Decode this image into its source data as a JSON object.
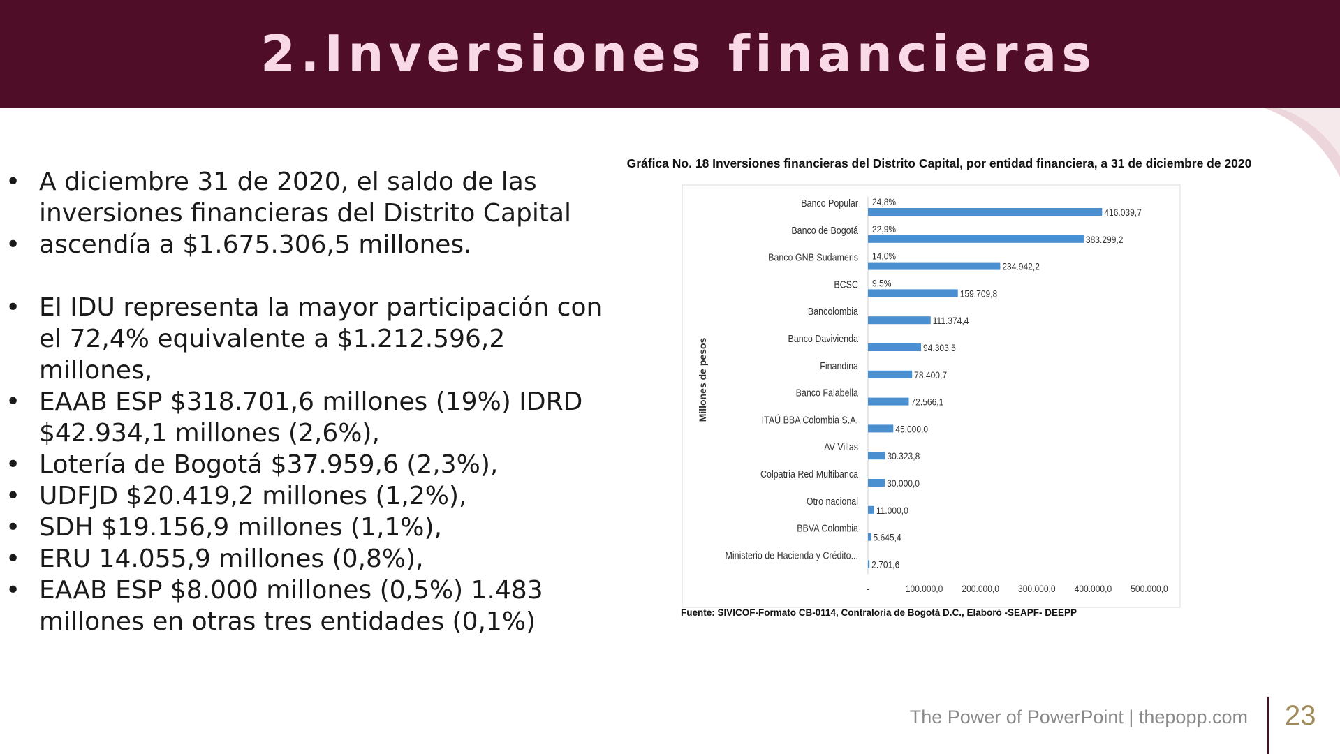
{
  "slide": {
    "title": "2.Inversiones financieras",
    "page_number": "23",
    "footer": "The Power of PowerPoint | thepopp.com"
  },
  "bullets": [
    {
      "text": "A diciembre 31 de 2020, el saldo de las inversiones financieras del Distrito Capital",
      "bullet": true
    },
    {
      "text": "ascendía a $1.675.306,5 millones.",
      "bullet": true
    },
    {
      "text": "",
      "bullet": false
    },
    {
      "text": "El IDU representa la mayor participación con el 72,4% equivalente a $1.212.596,2 millones,",
      "bullet": true
    },
    {
      "text": "EAAB ESP $318.701,6 millones (19%) IDRD $42.934,1 millones (2,6%),",
      "bullet": true
    },
    {
      "text": "Lotería de Bogotá $37.959,6 (2,3%),",
      "bullet": true
    },
    {
      "text": "UDFJD $20.419,2 millones (1,2%),",
      "bullet": true
    },
    {
      "text": "SDH $19.156,9 millones (1,1%),",
      "bullet": true
    },
    {
      "text": "ERU 14.055,9 millones (0,8%),",
      "bullet": true
    },
    {
      "text": "EAAB ESP $8.000 millones (0,5%)   1.483 millones en otras tres entidades (0,1%)",
      "bullet": true
    }
  ],
  "chart_data": {
    "type": "bar",
    "orientation": "horizontal",
    "title": "Gráfica No. 18 Inversiones financieras del Distrito Capital, por entidad financiera, a 31 de diciembre de 2020",
    "ylabel": "Millones de pesos",
    "source": "Fuente: SIVICOF-Formato CB-0114, Contraloría de Bogotá D.C., Elaboró -SEAPF- DEEPP",
    "categories": [
      "Banco Popular",
      "Banco de Bogotá",
      "Banco GNB Sudameris",
      "BCSC",
      "Bancolombia",
      "Banco Davivienda",
      "Finandina",
      "Banco Falabella",
      "ITAÚ BBA Colombia S.A.",
      "AV Villas",
      "Colpatria Red Multibanca",
      "Otro nacional",
      "BBVA Colombia",
      "Ministerio de Hacienda y Crédito..."
    ],
    "values": [
      416039.7,
      383299.2,
      234942.2,
      159709.8,
      111374.4,
      94303.5,
      78400.7,
      72566.1,
      45000.0,
      30323.8,
      30000.0,
      11000.0,
      5645.4,
      2701.6
    ],
    "value_labels": [
      "416.039,7",
      "383.299,2",
      "234.942,2",
      "159.709,8",
      "111.374,4",
      "94.303,5",
      "78.400,7",
      "72.566,1",
      "45.000,0",
      "30.323,8",
      "30.000,0",
      "11.000,0",
      "5.645,4",
      "2.701,6"
    ],
    "percent_labels": [
      "24,8%",
      "22,9%",
      "14,0%",
      "9,5%"
    ],
    "xlim": [
      0,
      500000
    ],
    "xticks": [
      0,
      100000,
      200000,
      300000,
      400000,
      500000
    ],
    "xtick_labels": [
      "-",
      "100.000,0",
      "200.000,0",
      "300.000,0",
      "400.000,0",
      "500.000,0"
    ],
    "bar_color": "#4a90d0",
    "grid": false,
    "legend": "none"
  }
}
